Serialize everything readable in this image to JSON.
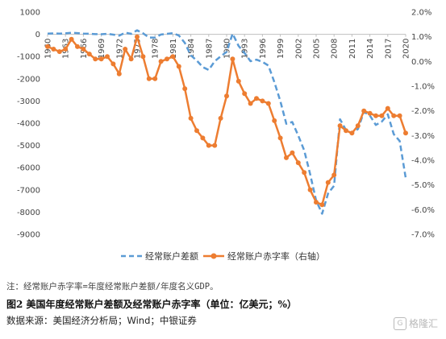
{
  "chart_data": {
    "type": "line",
    "x_ticks": [
      "1960",
      "1963",
      "1966",
      "1969",
      "1972",
      "1975",
      "1978",
      "1981",
      "1984",
      "1987",
      "1990",
      "1993",
      "1996",
      "1999",
      "2002",
      "2005",
      "2008",
      "2011",
      "2014",
      "2017",
      "2020"
    ],
    "y_left": {
      "ticks": [
        "1000",
        "0",
        "-1000",
        "-2000",
        "-3000",
        "-4000",
        "-5000",
        "-6000",
        "-7000",
        "-8000",
        "-9000"
      ],
      "range": [
        -9000,
        1000
      ]
    },
    "y_right": {
      "ticks": [
        "2.0%",
        "1.0%",
        "0.0%",
        "-1.0%",
        "-2.0%",
        "-3.0%",
        "-4.0%",
        "-5.0%",
        "-6.0%",
        "-7.0%"
      ],
      "range": [
        -7.0,
        2.0
      ]
    },
    "grid": false,
    "legend_position": "bottom",
    "series": [
      {
        "name": "经常账户差额",
        "axis": "left",
        "style": "dashed",
        "color": "#5b9bd5",
        "x": [
          1960,
          1961,
          1962,
          1963,
          1964,
          1965,
          1966,
          1967,
          1968,
          1969,
          1970,
          1971,
          1972,
          1973,
          1974,
          1975,
          1976,
          1977,
          1978,
          1979,
          1980,
          1981,
          1982,
          1983,
          1984,
          1985,
          1986,
          1987,
          1988,
          1989,
          1990,
          1991,
          1992,
          1993,
          1994,
          1995,
          1996,
          1997,
          1998,
          1999,
          2000,
          2001,
          2002,
          2003,
          2004,
          2005,
          2006,
          2007,
          2008,
          2009,
          2010,
          2011,
          2012,
          2013,
          2014,
          2015,
          2016,
          2017,
          2018,
          2019,
          2020
        ],
        "values": [
          28,
          39,
          34,
          44,
          68,
          54,
          31,
          26,
          6,
          4,
          23,
          -14,
          -58,
          71,
          20,
          182,
          43,
          -144,
          -150,
          -10,
          23,
          50,
          -55,
          -386,
          -944,
          -1182,
          -1473,
          -1604,
          -1215,
          -992,
          -790,
          30,
          -520,
          -842,
          -1210,
          -1140,
          -1244,
          -1405,
          -2153,
          -3007,
          -4026,
          -3945,
          -4558,
          -5225,
          -6301,
          -7483,
          -8072,
          -7160,
          -6817,
          -3824,
          -4312,
          -4459,
          -4261,
          -3493,
          -3651,
          -4080,
          -3927,
          -3601,
          -4493,
          -4804,
          -6458
        ]
      },
      {
        "name": "经常账户赤字率（右轴）",
        "axis": "right",
        "style": "solid-markers",
        "color": "#ed7d31",
        "x": [
          1960,
          1961,
          1962,
          1963,
          1964,
          1965,
          1966,
          1967,
          1968,
          1969,
          1970,
          1971,
          1972,
          1973,
          1974,
          1975,
          1976,
          1977,
          1978,
          1979,
          1980,
          1981,
          1982,
          1983,
          1984,
          1985,
          1986,
          1987,
          1988,
          1989,
          1990,
          1991,
          1992,
          1993,
          1994,
          1995,
          1996,
          1997,
          1998,
          1999,
          2000,
          2001,
          2002,
          2003,
          2004,
          2005,
          2006,
          2007,
          2008,
          2009,
          2010,
          2011,
          2012,
          2013,
          2014,
          2015,
          2016,
          2017,
          2018,
          2019,
          2020
        ],
        "values": [
          0.6,
          0.5,
          0.4,
          0.5,
          0.9,
          0.6,
          0.5,
          0.3,
          0.1,
          0.1,
          0.2,
          -0.1,
          -0.5,
          0.5,
          0.1,
          1.0,
          0.2,
          -0.7,
          -0.7,
          0.0,
          0.1,
          0.2,
          -0.2,
          -1.1,
          -2.3,
          -2.8,
          -3.1,
          -3.4,
          -3.4,
          -2.3,
          -1.4,
          0.1,
          -0.8,
          -1.3,
          -1.7,
          -1.5,
          -1.6,
          -1.7,
          -2.4,
          -3.1,
          -3.9,
          -3.7,
          -4.1,
          -4.5,
          -5.2,
          -5.7,
          -5.8,
          -4.9,
          -4.6,
          -2.6,
          -2.8,
          -2.9,
          -2.6,
          -2.0,
          -2.1,
          -2.2,
          -2.2,
          -1.9,
          -2.2,
          -2.2,
          -2.9
        ]
      }
    ]
  },
  "note": "注：经常账户赤字率=年度经常账户差额/年度名义GDP。",
  "caption": "图2 美国年度经常账户差额及经常账户赤字率（单位：亿美元；%）",
  "source": "数据来源：美国经济分析局；Wind；中银证券",
  "watermark": "格隆汇",
  "watermark_icon": "glh-logo-icon"
}
